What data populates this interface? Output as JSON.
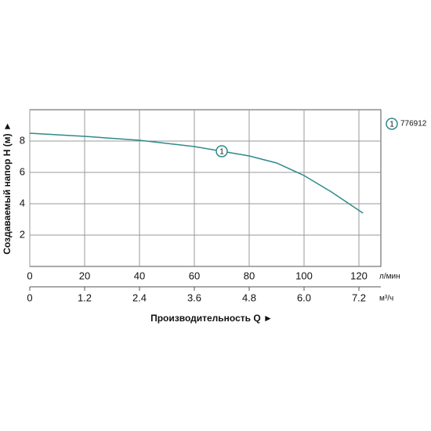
{
  "chart_data": {
    "type": "line",
    "x_label": "Производительность Q ►",
    "y_label": "Создаваемый напор H (м) ►",
    "x_unit": "л/мин",
    "x2_unit": "м³/ч",
    "xlim": [
      0,
      128
    ],
    "xticks": [
      0,
      20,
      40,
      60,
      80,
      100,
      120
    ],
    "x2lim": [
      0,
      7.68
    ],
    "x2ticks": [
      0,
      1.2,
      2.4,
      3.6,
      4.8,
      {
        "value": 6,
        "label": "6.0"
      },
      7.2
    ],
    "ylim": [
      0,
      10
    ],
    "yticks": [
      2,
      4,
      6,
      8
    ],
    "grid": true,
    "series": [
      {
        "name": "776912",
        "marker_label": "1",
        "color": "#2e8a8a",
        "x": [
          0,
          20,
          40,
          60,
          70,
          80,
          90,
          100,
          110,
          121.5
        ],
        "values": [
          8.5,
          8.3,
          8.05,
          7.65,
          7.35,
          7.05,
          6.6,
          5.8,
          4.75,
          3.4
        ]
      }
    ]
  }
}
